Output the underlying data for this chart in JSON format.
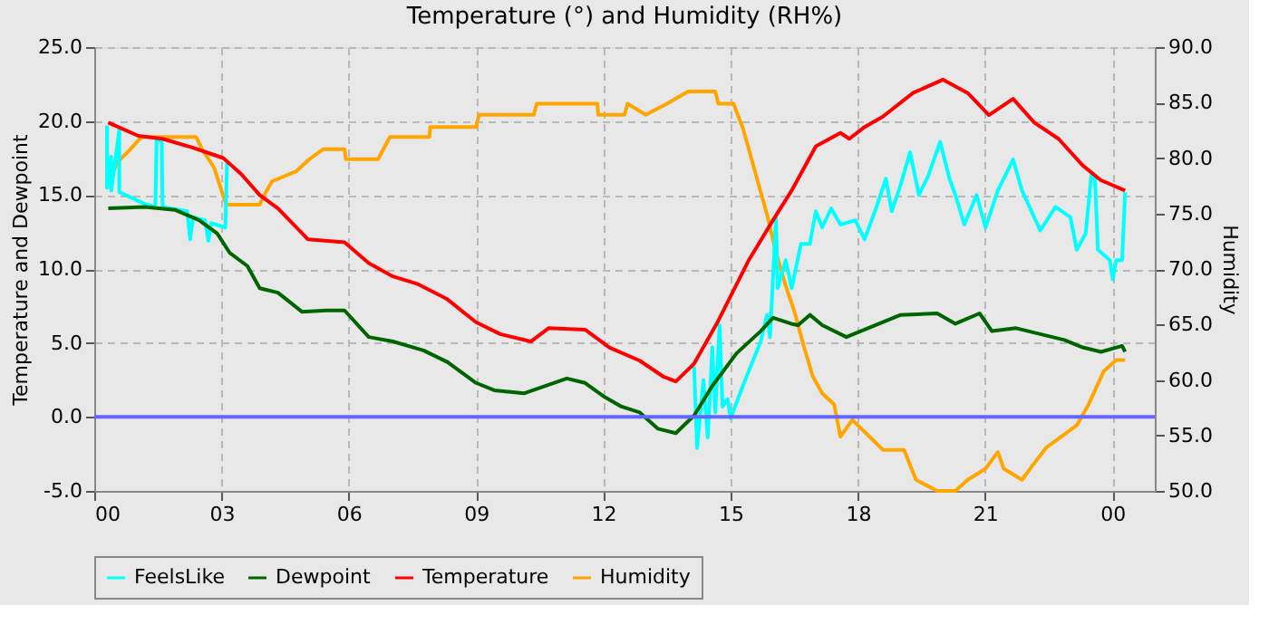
{
  "chart_data": {
    "type": "line",
    "title": "Temperature (°) and Humidity (RH%)",
    "ylabel": "Temperature and Dewpoint",
    "y2label": "Humidity",
    "xlim": [
      0,
      25
    ],
    "xticks": [
      {
        "value": 0,
        "label": "00"
      },
      {
        "value": 3,
        "label": "03"
      },
      {
        "value": 6,
        "label": "06"
      },
      {
        "value": 9,
        "label": "09"
      },
      {
        "value": 12,
        "label": "12"
      },
      {
        "value": 15,
        "label": "15"
      },
      {
        "value": 18,
        "label": "18"
      },
      {
        "value": 21,
        "label": "21"
      },
      {
        "value": 24,
        "label": "00"
      }
    ],
    "ylim": [
      -5,
      25
    ],
    "yticks": [
      {
        "value": -5,
        "label": "-5.0"
      },
      {
        "value": 0,
        "label": "0.0"
      },
      {
        "value": 5,
        "label": "5.0"
      },
      {
        "value": 10,
        "label": "10.0"
      },
      {
        "value": 15,
        "label": "15.0"
      },
      {
        "value": 20,
        "label": "20.0"
      },
      {
        "value": 25,
        "label": "25.0"
      }
    ],
    "y2lim": [
      50,
      90
    ],
    "y2ticks": [
      {
        "value": 50,
        "label": "50.0"
      },
      {
        "value": 55,
        "label": "55.0"
      },
      {
        "value": 60,
        "label": "60.0"
      },
      {
        "value": 65,
        "label": "65.0"
      },
      {
        "value": 70,
        "label": "70.0"
      },
      {
        "value": 75,
        "label": "75.0"
      },
      {
        "value": 80,
        "label": "80.0"
      },
      {
        "value": 85,
        "label": "85.0"
      },
      {
        "value": 90,
        "label": "90.0"
      }
    ],
    "grid": true,
    "legend": "bottom",
    "line_style": "solid",
    "marker": "none",
    "ref_lines": [
      {
        "axis": "y",
        "value": 0,
        "color": "#6464ff"
      }
    ],
    "series": [
      {
        "name": "FeelsLike",
        "color": "#00ffff",
        "x": [
          0.3,
          0.3,
          0.4,
          0.4,
          0.59,
          0.59,
          1.19,
          1.44,
          1.47,
          1.59,
          1.61,
          2.19,
          2.26,
          2.33,
          2.61,
          2.69,
          2.76,
          3.09,
          3.13,
          3.2,
          14.1,
          14.14,
          14.21,
          14.36,
          14.46,
          14.57,
          14.64,
          14.74,
          14.81,
          14.93,
          15.0,
          15.29,
          15.71,
          15.86,
          15.93,
          16.07,
          16.11,
          16.3,
          16.44,
          16.66,
          16.87,
          17.01,
          17.16,
          17.37,
          17.59,
          17.94,
          18.16,
          18.44,
          18.66,
          18.8,
          19.01,
          19.23,
          19.44,
          19.66,
          19.94,
          20.16,
          20.3,
          20.51,
          20.8,
          21.01,
          21.3,
          21.66,
          21.87,
          22.3,
          22.66,
          23.01,
          23.16,
          23.37,
          23.51,
          23.59,
          23.66,
          23.94,
          24.01,
          24.09,
          24.23,
          24.3
        ],
        "values": [
          19.7,
          15.5,
          17.6,
          15.3,
          19.4,
          15.2,
          14.4,
          14.2,
          18.8,
          18.6,
          14.2,
          13.9,
          12.0,
          13.5,
          13.3,
          11.9,
          13.1,
          12.8,
          17.2,
          null,
          null,
          3.4,
          -2.1,
          2.5,
          -1.4,
          4.7,
          0.3,
          6.2,
          0.7,
          1.2,
          -0.1,
          2.1,
          5.1,
          6.9,
          5.4,
          13.5,
          8.7,
          10.6,
          8.7,
          11.7,
          11.7,
          13.9,
          12.8,
          14.1,
          13.0,
          13.3,
          12.0,
          14.2,
          16.1,
          13.9,
          15.7,
          17.9,
          15.0,
          16.3,
          18.6,
          16.1,
          15.0,
          13.0,
          15.0,
          12.8,
          15.3,
          17.4,
          15.3,
          12.6,
          14.2,
          13.5,
          11.3,
          12.4,
          16.5,
          16.1,
          11.3,
          10.6,
          9.3,
          10.6,
          10.6,
          15.2
        ]
      },
      {
        "name": "Dewpoint",
        "color": "#006400",
        "x": [
          0.33,
          1.19,
          1.9,
          2.47,
          2.9,
          3.19,
          3.61,
          3.9,
          4.33,
          4.9,
          5.47,
          5.9,
          6.47,
          7.04,
          7.76,
          8.33,
          9.0,
          9.43,
          10.14,
          11.14,
          11.57,
          12.0,
          12.43,
          12.86,
          13.29,
          13.71,
          14.14,
          14.57,
          15.14,
          15.71,
          16.0,
          16.43,
          16.59,
          16.87,
          17.16,
          17.73,
          18.16,
          19.01,
          19.87,
          20.3,
          20.87,
          21.16,
          21.73,
          22.3,
          22.87,
          23.3,
          23.73,
          24.23,
          24.3
        ],
        "values": [
          14.1,
          14.2,
          14.0,
          13.3,
          12.4,
          11.1,
          10.2,
          8.7,
          8.4,
          7.1,
          7.2,
          7.2,
          5.4,
          5.1,
          4.5,
          3.7,
          2.3,
          1.8,
          1.6,
          2.6,
          2.3,
          1.4,
          0.7,
          0.3,
          -0.8,
          -1.1,
          0.1,
          2.1,
          4.3,
          5.8,
          6.7,
          6.3,
          6.2,
          6.9,
          6.2,
          5.4,
          5.9,
          6.9,
          7.0,
          6.3,
          7.0,
          5.8,
          6.0,
          5.6,
          5.2,
          4.7,
          4.4,
          4.8,
          4.4
        ]
      },
      {
        "name": "Temperature",
        "color": "#ff0000",
        "x": [
          0.33,
          1.04,
          1.61,
          2.33,
          3.04,
          3.47,
          3.9,
          4.33,
          5.04,
          5.9,
          6.47,
          7.04,
          7.61,
          8.3,
          9.0,
          9.57,
          10.29,
          10.71,
          11.57,
          12.14,
          12.86,
          13.43,
          13.71,
          14.14,
          14.71,
          15.43,
          16.0,
          16.44,
          17.01,
          17.59,
          17.8,
          18.16,
          18.59,
          19.3,
          20.01,
          20.59,
          21.09,
          21.66,
          22.16,
          22.73,
          23.3,
          23.73,
          24.3
        ],
        "values": [
          19.9,
          19.0,
          18.8,
          18.2,
          17.5,
          16.4,
          15.0,
          14.1,
          12.0,
          11.8,
          10.4,
          9.5,
          9.0,
          8.0,
          6.4,
          5.6,
          5.1,
          6.0,
          5.9,
          4.7,
          3.8,
          2.7,
          2.4,
          3.6,
          6.5,
          10.6,
          13.3,
          15.3,
          18.3,
          19.2,
          18.8,
          19.6,
          20.3,
          21.9,
          22.8,
          21.9,
          20.4,
          21.5,
          19.9,
          18.8,
          17.0,
          16.0,
          15.3
        ]
      },
      {
        "name": "Humidity",
        "color": "#ffa500",
        "axis": "y2",
        "x": [
          0.33,
          0.47,
          0.54,
          0.83,
          1.11,
          2.4,
          2.54,
          2.83,
          2.97,
          3.11,
          3.9,
          4.04,
          4.19,
          4.76,
          5.04,
          5.4,
          5.9,
          5.93,
          6.69,
          6.97,
          7.9,
          7.92,
          9.0,
          9.07,
          10.36,
          10.43,
          11.86,
          11.88,
          12.5,
          12.57,
          13.0,
          13.5,
          14.0,
          14.64,
          14.71,
          15.07,
          15.29,
          15.43,
          15.64,
          15.86,
          16.07,
          16.29,
          16.51,
          16.73,
          16.94,
          17.16,
          17.44,
          17.59,
          17.87,
          18.3,
          18.59,
          19.09,
          19.37,
          19.87,
          20.3,
          20.59,
          21.01,
          21.3,
          21.44,
          21.87,
          22.16,
          22.44,
          22.73,
          23.16,
          23.44,
          23.8,
          24.09,
          24.3
        ],
        "values": [
          79.1,
          78.9,
          79.6,
          80.7,
          81.9,
          81.9,
          80.8,
          79.1,
          77.4,
          75.8,
          75.8,
          76.9,
          77.9,
          78.8,
          79.8,
          80.8,
          80.8,
          79.9,
          79.9,
          81.9,
          81.9,
          82.8,
          82.8,
          83.9,
          83.9,
          84.9,
          84.9,
          83.9,
          83.9,
          84.9,
          83.9,
          84.9,
          86.0,
          86.0,
          84.9,
          84.9,
          82.7,
          80.8,
          77.9,
          74.9,
          71.5,
          68.6,
          66.1,
          63.0,
          60.3,
          58.8,
          57.8,
          54.9,
          56.4,
          54.8,
          53.7,
          53.7,
          51.0,
          50.0,
          50.0,
          51.0,
          52.0,
          53.5,
          52.0,
          51.0,
          52.5,
          53.9,
          54.7,
          55.9,
          57.8,
          60.8,
          61.8,
          61.8
        ]
      }
    ]
  }
}
